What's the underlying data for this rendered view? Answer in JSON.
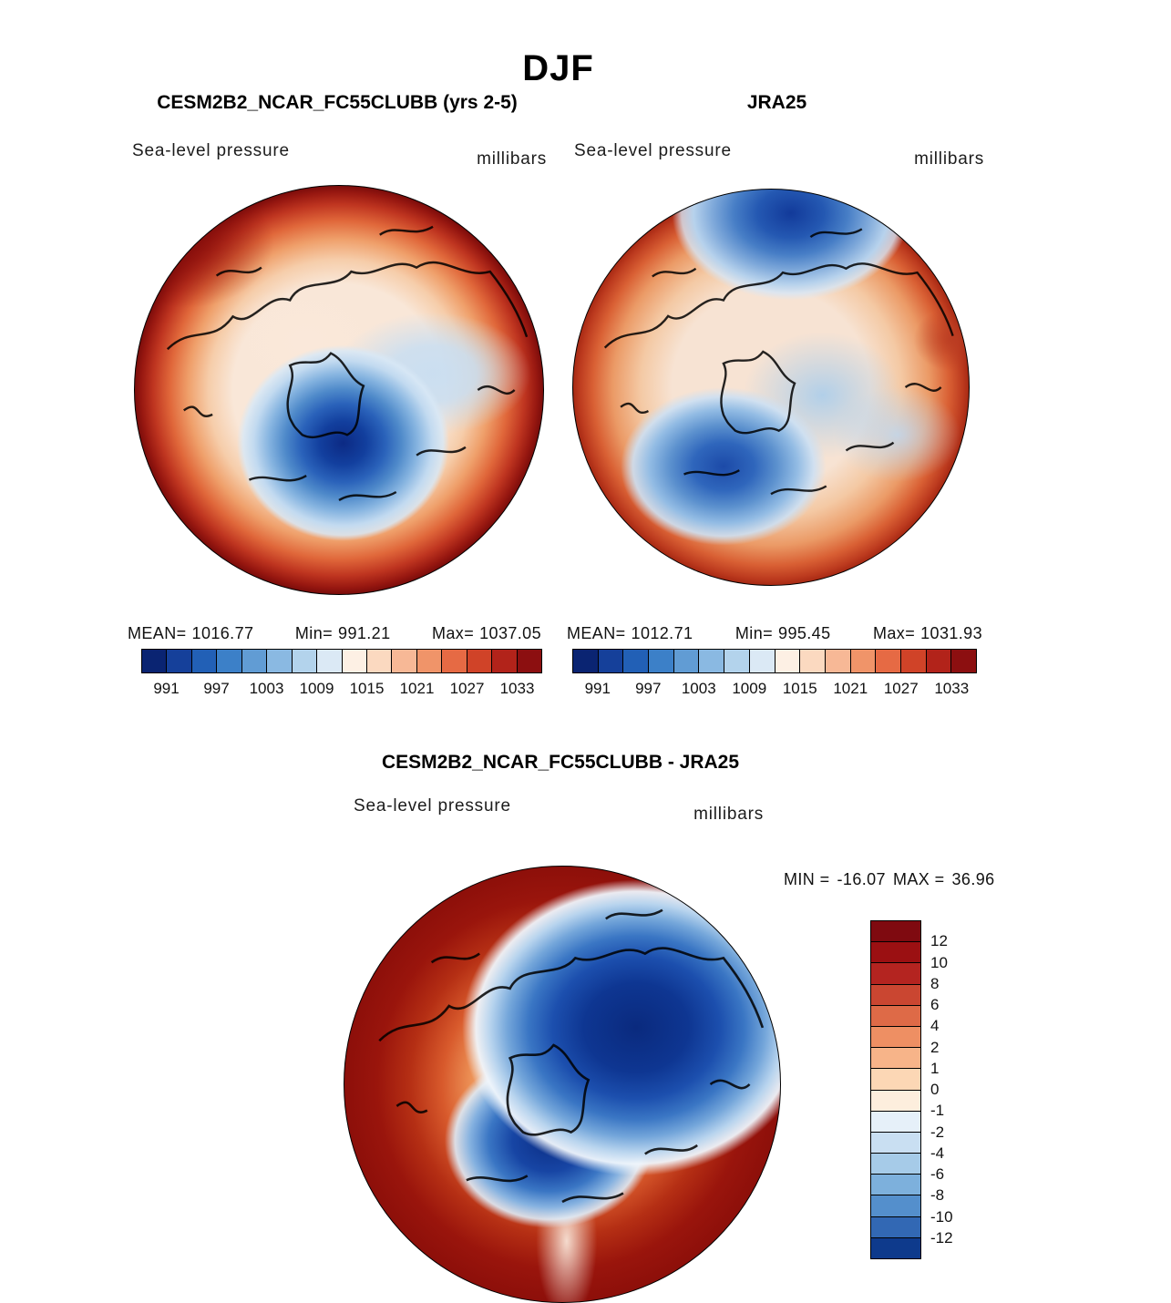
{
  "title": "DJF",
  "panels": [
    {
      "title": "CESM2B2_NCAR_FC55CLUBB (yrs 2-5)",
      "field_label": "Sea-level pressure",
      "units_label": "millibars",
      "stats": {
        "mean_label": "MEAN=",
        "mean": "1016.77",
        "min_label": "Min=",
        "min": "991.21",
        "max_label": "Max=",
        "max": "1037.05"
      },
      "colorbar_ticks": [
        "991",
        "997",
        "1003",
        "1009",
        "1015",
        "1021",
        "1027",
        "1033"
      ]
    },
    {
      "title": "JRA25",
      "field_label": "Sea-level pressure",
      "units_label": "millibars",
      "stats": {
        "mean_label": "MEAN=",
        "mean": "1012.71",
        "min_label": "Min=",
        "min": "995.45",
        "max_label": "Max=",
        "max": "1031.93"
      },
      "colorbar_ticks": [
        "991",
        "997",
        "1003",
        "1009",
        "1015",
        "1021",
        "1027",
        "1033"
      ]
    }
  ],
  "diff_panel": {
    "title": "CESM2B2_NCAR_FC55CLUBB - JRA25",
    "field_label": "Sea-level pressure",
    "units_label": "millibars",
    "stats": {
      "min_label": "MIN =",
      "min": "-16.07",
      "max_label": "MAX =",
      "max": "36.96"
    },
    "colorbar_ticks": [
      "12",
      "10",
      "8",
      "6",
      "4",
      "2",
      "1",
      "0",
      "-1",
      "-2",
      "-4",
      "-6",
      "-8",
      "-10",
      "-12"
    ]
  },
  "palettes": {
    "pressure": [
      "#0a2472",
      "#15409a",
      "#2260b6",
      "#3c80c8",
      "#619cd4",
      "#8ab9e2",
      "#b3d3ec",
      "#dbe9f5",
      "#fdf0e4",
      "#fbd9c0",
      "#f7b896",
      "#f09469",
      "#e66a44",
      "#d04328",
      "#b2231a",
      "#8c0f10"
    ],
    "diff": [
      "#7f0a10",
      "#9b1012",
      "#b42420",
      "#ca4631",
      "#de6a47",
      "#ee8f63",
      "#f7b489",
      "#fcd7b5",
      "#fdeedd",
      "#e6f0f9",
      "#c9dff2",
      "#a6cbe8",
      "#7db0dc",
      "#548fcc",
      "#3268b4",
      "#0e3a8c"
    ]
  },
  "chart_data": [
    {
      "type": "heatmap",
      "subtype": "filled_contour_map",
      "projection": "north_polar_stereographic",
      "season": "DJF",
      "title": "CESM2B2_NCAR_FC55CLUBB (yrs 2-5)",
      "variable": "Sea-level pressure",
      "units": "millibars",
      "mean": 1016.77,
      "min": 991.21,
      "max": 1037.05,
      "colorbar_tick_levels": [
        991,
        997,
        1003,
        1009,
        1015,
        1021,
        1027,
        1033
      ],
      "contour_interval": 3,
      "n_color_segments": 16,
      "palette_ref": "pressure",
      "legend_position": "bottom-horizontal",
      "notes": "Deep low (~991 mb) centered near the pole/Atlantic side; high pressure (~1033-1037 mb) ring over mid-latitude edges"
    },
    {
      "type": "heatmap",
      "subtype": "filled_contour_map",
      "projection": "north_polar_stereographic",
      "season": "DJF",
      "title": "JRA25",
      "variable": "Sea-level pressure",
      "units": "millibars",
      "mean": 1012.71,
      "min": 995.45,
      "max": 1031.93,
      "colorbar_tick_levels": [
        991,
        997,
        1003,
        1009,
        1015,
        1021,
        1027,
        1033
      ],
      "contour_interval": 3,
      "n_color_segments": 16,
      "palette_ref": "pressure",
      "legend_position": "bottom-horizontal",
      "notes": "Lows over central Arctic and North Atlantic; highs over continental edges"
    },
    {
      "type": "heatmap",
      "subtype": "filled_contour_difference_map",
      "projection": "north_polar_stereographic",
      "season": "DJF",
      "title": "CESM2B2_NCAR_FC55CLUBB - JRA25",
      "variable": "Sea-level pressure",
      "units": "millibars",
      "min": -16.07,
      "max": 36.96,
      "colorbar_tick_levels": [
        12,
        10,
        8,
        6,
        4,
        2,
        1,
        0,
        -1,
        -2,
        -4,
        -6,
        -8,
        -10,
        -12
      ],
      "n_color_segments": 16,
      "palette_ref": "diff",
      "legend_position": "right-vertical",
      "notes": "Large negative differences (< -12 mb) over Arctic/Siberian side; strong positive differences (> +12 mb) over surrounding mid-latitudes"
    }
  ]
}
